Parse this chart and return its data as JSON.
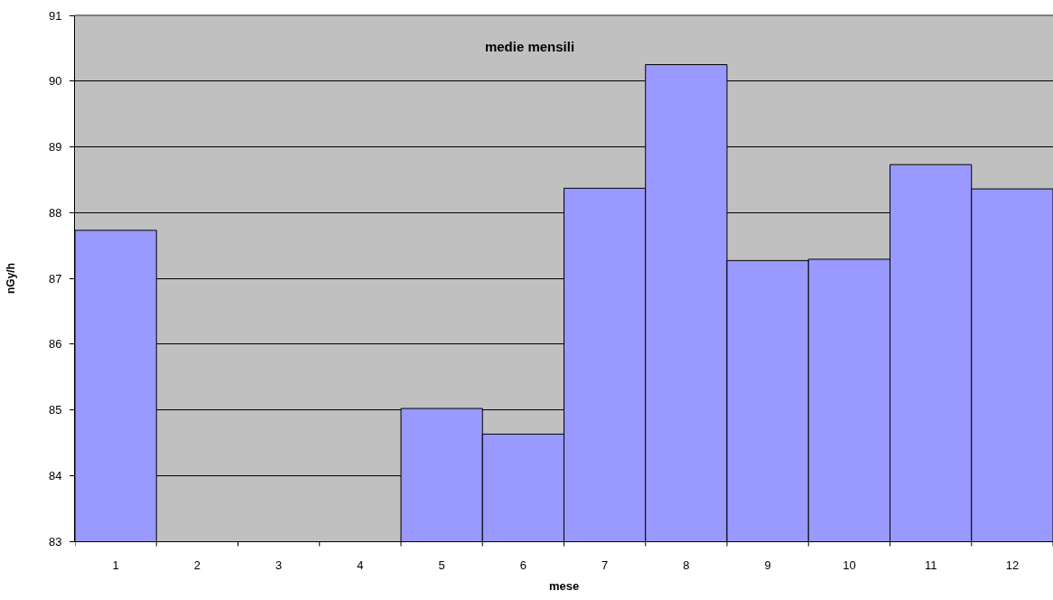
{
  "chart_data": {
    "type": "bar",
    "title": "medie mensili",
    "xlabel": "mese",
    "ylabel": "nGy/h",
    "categories": [
      "1",
      "2",
      "3",
      "4",
      "5",
      "6",
      "7",
      "8",
      "9",
      "10",
      "11",
      "12"
    ],
    "values": [
      87.73,
      null,
      null,
      null,
      85.02,
      84.63,
      88.37,
      90.25,
      87.27,
      87.29,
      88.73,
      88.36
    ],
    "color": "#9999ff",
    "ylim": [
      83,
      91
    ],
    "yticks": [
      83,
      84,
      85,
      86,
      87,
      88,
      89,
      90,
      91
    ],
    "grid": "y"
  }
}
